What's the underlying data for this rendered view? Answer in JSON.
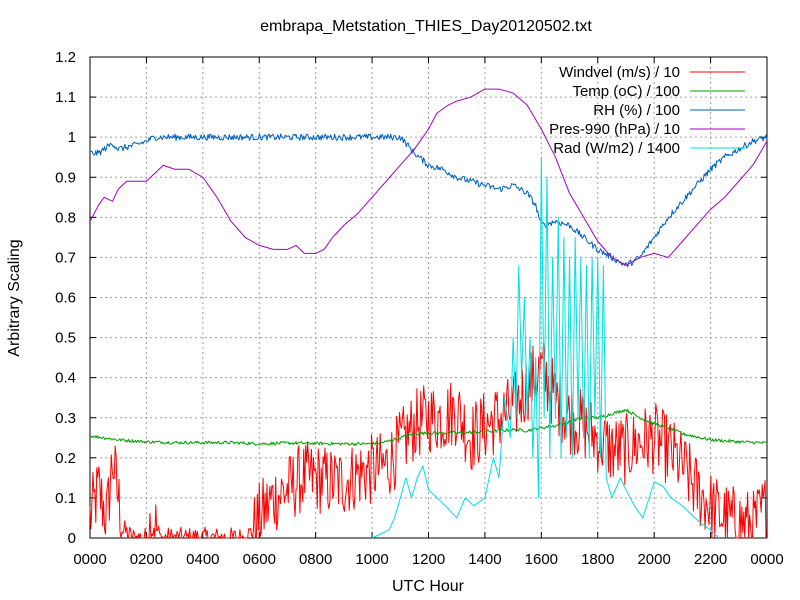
{
  "chart_data": {
    "type": "line",
    "title": "embrapa_Metstation_THIES_Day20120502.txt",
    "xlabel": "UTC Hour",
    "ylabel": "Arbitrary Scaling",
    "xlim": [
      0,
      24
    ],
    "ylim": [
      0,
      1.2
    ],
    "x_ticks": [
      0,
      2,
      4,
      6,
      8,
      10,
      12,
      14,
      16,
      18,
      20,
      22,
      24
    ],
    "x_tick_labels": [
      "0000",
      "0200",
      "0400",
      "0600",
      "0800",
      "1000",
      "1200",
      "1400",
      "1600",
      "1800",
      "2000",
      "2200",
      "0000"
    ],
    "y_ticks": [
      0,
      0.1,
      0.2,
      0.3,
      0.4,
      0.5,
      0.6,
      0.7,
      0.8,
      0.9,
      1,
      1.1,
      1.2
    ],
    "y_tick_labels": [
      "0",
      "0.1",
      "0.2",
      "0.3",
      "0.4",
      "0.5",
      "0.6",
      "0.7",
      "0.8",
      "0.9",
      "1",
      "1.1",
      "1.2"
    ],
    "grid": true,
    "legend_position": "top-right",
    "series": [
      {
        "name": "Windvel (m/s) / 10",
        "color": "#ff0000",
        "noise": 0.09,
        "points": [
          [
            0,
            0.05
          ],
          [
            0.3,
            0.12
          ],
          [
            0.6,
            0.05
          ],
          [
            0.8,
            0.2
          ],
          [
            1.0,
            0.1
          ],
          [
            1.2,
            0.02
          ],
          [
            1.5,
            0.0
          ],
          [
            2.0,
            0.0
          ],
          [
            2.2,
            0.05
          ],
          [
            2.5,
            0.0
          ],
          [
            3.0,
            0.0
          ],
          [
            5.5,
            0.0
          ],
          [
            5.8,
            0.02
          ],
          [
            6.0,
            0.05
          ],
          [
            6.5,
            0.1
          ],
          [
            7.0,
            0.12
          ],
          [
            7.5,
            0.15
          ],
          [
            8.0,
            0.15
          ],
          [
            8.5,
            0.14
          ],
          [
            9.0,
            0.14
          ],
          [
            9.5,
            0.16
          ],
          [
            10.0,
            0.17
          ],
          [
            10.5,
            0.18
          ],
          [
            11.0,
            0.23
          ],
          [
            11.5,
            0.28
          ],
          [
            12.0,
            0.3
          ],
          [
            12.5,
            0.3
          ],
          [
            13.0,
            0.32
          ],
          [
            13.5,
            0.25
          ],
          [
            14.0,
            0.28
          ],
          [
            14.5,
            0.3
          ],
          [
            15.0,
            0.32
          ],
          [
            15.5,
            0.38
          ],
          [
            16.0,
            0.42
          ],
          [
            16.5,
            0.35
          ],
          [
            17.0,
            0.3
          ],
          [
            17.5,
            0.28
          ],
          [
            18.0,
            0.25
          ],
          [
            18.5,
            0.22
          ],
          [
            19.0,
            0.22
          ],
          [
            19.5,
            0.24
          ],
          [
            20.0,
            0.25
          ],
          [
            20.5,
            0.22
          ],
          [
            21.0,
            0.18
          ],
          [
            21.5,
            0.12
          ],
          [
            22.0,
            0.08
          ],
          [
            22.5,
            0.05
          ],
          [
            23.0,
            0.04
          ],
          [
            23.5,
            0.03
          ],
          [
            24.0,
            0.08
          ]
        ]
      },
      {
        "name": "Temp (oC) / 100",
        "color": "#00a000",
        "noise": 0.004,
        "points": [
          [
            0,
            0.255
          ],
          [
            1,
            0.245
          ],
          [
            2,
            0.24
          ],
          [
            3,
            0.238
          ],
          [
            4,
            0.238
          ],
          [
            5,
            0.238
          ],
          [
            6,
            0.235
          ],
          [
            7,
            0.237
          ],
          [
            8,
            0.236
          ],
          [
            9,
            0.235
          ],
          [
            10,
            0.235
          ],
          [
            10.5,
            0.24
          ],
          [
            11,
            0.25
          ],
          [
            11.5,
            0.26
          ],
          [
            12,
            0.262
          ],
          [
            13,
            0.262
          ],
          [
            14,
            0.265
          ],
          [
            15,
            0.27
          ],
          [
            15.5,
            0.268
          ],
          [
            16,
            0.275
          ],
          [
            16.5,
            0.28
          ],
          [
            17,
            0.29
          ],
          [
            17.5,
            0.3
          ],
          [
            18,
            0.3
          ],
          [
            18.5,
            0.31
          ],
          [
            19,
            0.32
          ],
          [
            19.5,
            0.3
          ],
          [
            20,
            0.285
          ],
          [
            20.5,
            0.275
          ],
          [
            21,
            0.26
          ],
          [
            22,
            0.245
          ],
          [
            23,
            0.24
          ],
          [
            24,
            0.237
          ]
        ]
      },
      {
        "name": "RH (%) / 100",
        "color": "#0060c0",
        "noise": 0.008,
        "points": [
          [
            0,
            0.96
          ],
          [
            0.3,
            0.96
          ],
          [
            0.5,
            0.97
          ],
          [
            0.8,
            0.985
          ],
          [
            1.0,
            0.97
          ],
          [
            1.3,
            0.975
          ],
          [
            1.6,
            0.98
          ],
          [
            2.0,
            0.99
          ],
          [
            2.3,
            1.0
          ],
          [
            3.0,
            1.0
          ],
          [
            5.0,
            1.0
          ],
          [
            7.0,
            1.0
          ],
          [
            9.0,
            1.0
          ],
          [
            10.0,
            1.0
          ],
          [
            11.0,
            1.0
          ],
          [
            11.2,
            0.985
          ],
          [
            11.5,
            0.96
          ],
          [
            12.0,
            0.93
          ],
          [
            12.5,
            0.92
          ],
          [
            13.0,
            0.9
          ],
          [
            13.5,
            0.89
          ],
          [
            14.0,
            0.88
          ],
          [
            14.5,
            0.87
          ],
          [
            15.0,
            0.88
          ],
          [
            15.5,
            0.86
          ],
          [
            15.8,
            0.83
          ],
          [
            16.0,
            0.78
          ],
          [
            16.5,
            0.79
          ],
          [
            17.0,
            0.78
          ],
          [
            17.5,
            0.75
          ],
          [
            18.0,
            0.72
          ],
          [
            18.5,
            0.7
          ],
          [
            19.0,
            0.68
          ],
          [
            19.5,
            0.7
          ],
          [
            20.0,
            0.75
          ],
          [
            20.5,
            0.8
          ],
          [
            21.0,
            0.84
          ],
          [
            21.5,
            0.88
          ],
          [
            22.0,
            0.92
          ],
          [
            22.5,
            0.95
          ],
          [
            23.0,
            0.97
          ],
          [
            23.5,
            0.99
          ],
          [
            24.0,
            1.0
          ]
        ]
      },
      {
        "name": "Pres-990 (hPa) / 10",
        "color": "#a000c0",
        "noise": 0.0,
        "points": [
          [
            0,
            0.79
          ],
          [
            0.3,
            0.83
          ],
          [
            0.5,
            0.85
          ],
          [
            0.8,
            0.84
          ],
          [
            1.0,
            0.87
          ],
          [
            1.3,
            0.89
          ],
          [
            2.0,
            0.89
          ],
          [
            2.3,
            0.91
          ],
          [
            2.6,
            0.93
          ],
          [
            3.0,
            0.92
          ],
          [
            3.5,
            0.92
          ],
          [
            4.0,
            0.9
          ],
          [
            4.5,
            0.85
          ],
          [
            5.0,
            0.79
          ],
          [
            5.5,
            0.75
          ],
          [
            6.0,
            0.73
          ],
          [
            6.5,
            0.72
          ],
          [
            7.0,
            0.72
          ],
          [
            7.3,
            0.73
          ],
          [
            7.6,
            0.71
          ],
          [
            8.0,
            0.71
          ],
          [
            8.3,
            0.72
          ],
          [
            8.6,
            0.75
          ],
          [
            9.0,
            0.78
          ],
          [
            9.5,
            0.81
          ],
          [
            10.0,
            0.85
          ],
          [
            10.5,
            0.89
          ],
          [
            11.0,
            0.93
          ],
          [
            11.5,
            0.97
          ],
          [
            12.0,
            1.02
          ],
          [
            12.3,
            1.06
          ],
          [
            12.7,
            1.08
          ],
          [
            13.0,
            1.09
          ],
          [
            13.5,
            1.1
          ],
          [
            14.0,
            1.12
          ],
          [
            14.5,
            1.12
          ],
          [
            15.0,
            1.11
          ],
          [
            15.5,
            1.08
          ],
          [
            16.0,
            1.02
          ],
          [
            16.5,
            0.95
          ],
          [
            17.0,
            0.86
          ],
          [
            17.5,
            0.8
          ],
          [
            18.0,
            0.74
          ],
          [
            18.5,
            0.7
          ],
          [
            19.0,
            0.68
          ],
          [
            19.5,
            0.7
          ],
          [
            20.0,
            0.71
          ],
          [
            20.5,
            0.7
          ],
          [
            21.0,
            0.74
          ],
          [
            21.5,
            0.78
          ],
          [
            22.0,
            0.82
          ],
          [
            22.5,
            0.85
          ],
          [
            23.0,
            0.89
          ],
          [
            23.5,
            0.93
          ],
          [
            24.0,
            0.99
          ]
        ]
      },
      {
        "name": "Rad (W/m2) / 1400",
        "color": "#00e0e0",
        "noise": 0.0,
        "points": [
          [
            10.0,
            0.0
          ],
          [
            10.3,
            0.01
          ],
          [
            10.6,
            0.02
          ],
          [
            10.8,
            0.05
          ],
          [
            11.0,
            0.1
          ],
          [
            11.2,
            0.15
          ],
          [
            11.4,
            0.1
          ],
          [
            11.6,
            0.15
          ],
          [
            11.8,
            0.18
          ],
          [
            12.0,
            0.12
          ],
          [
            12.3,
            0.1
          ],
          [
            12.6,
            0.08
          ],
          [
            13.0,
            0.05
          ],
          [
            13.3,
            0.1
          ],
          [
            13.6,
            0.08
          ],
          [
            14.0,
            0.1
          ],
          [
            14.3,
            0.2
          ],
          [
            14.5,
            0.15
          ],
          [
            14.7,
            0.35
          ],
          [
            14.9,
            0.25
          ],
          [
            15.0,
            0.5
          ],
          [
            15.1,
            0.3
          ],
          [
            15.2,
            0.68
          ],
          [
            15.3,
            0.4
          ],
          [
            15.4,
            0.6
          ],
          [
            15.5,
            0.3
          ],
          [
            15.6,
            0.5
          ],
          [
            15.7,
            0.2
          ],
          [
            15.8,
            0.45
          ],
          [
            15.9,
            0.1
          ],
          [
            16.0,
            0.95
          ],
          [
            16.1,
            0.3
          ],
          [
            16.2,
            0.9
          ],
          [
            16.3,
            0.2
          ],
          [
            16.4,
            0.7
          ],
          [
            16.5,
            0.3
          ],
          [
            16.6,
            0.8
          ],
          [
            16.7,
            0.2
          ],
          [
            16.8,
            0.75
          ],
          [
            16.9,
            0.25
          ],
          [
            17.0,
            0.7
          ],
          [
            17.1,
            0.2
          ],
          [
            17.2,
            0.75
          ],
          [
            17.3,
            0.3
          ],
          [
            17.4,
            0.7
          ],
          [
            17.5,
            0.25
          ],
          [
            17.6,
            0.68
          ],
          [
            17.7,
            0.2
          ],
          [
            17.8,
            0.7
          ],
          [
            17.9,
            0.3
          ],
          [
            18.0,
            0.7
          ],
          [
            18.1,
            0.2
          ],
          [
            18.2,
            0.68
          ],
          [
            18.3,
            0.15
          ],
          [
            18.5,
            0.1
          ],
          [
            18.8,
            0.15
          ],
          [
            19.0,
            0.12
          ],
          [
            19.3,
            0.08
          ],
          [
            19.6,
            0.05
          ],
          [
            20.0,
            0.14
          ],
          [
            20.3,
            0.13
          ],
          [
            20.6,
            0.1
          ],
          [
            21.0,
            0.08
          ],
          [
            21.3,
            0.06
          ],
          [
            21.6,
            0.04
          ],
          [
            22.0,
            0.02
          ],
          [
            22.3,
            0.0
          ]
        ]
      }
    ]
  }
}
